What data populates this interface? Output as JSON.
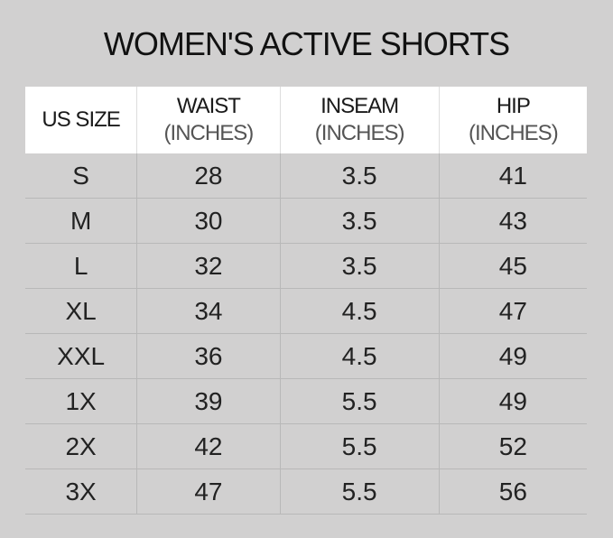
{
  "title": "WOMEN'S ACTIVE SHORTS",
  "headers": [
    {
      "label": "US SIZE",
      "sub": ""
    },
    {
      "label": "WAIST",
      "sub": "(INCHES)"
    },
    {
      "label": "INSEAM",
      "sub": "(INCHES)"
    },
    {
      "label": "HIP",
      "sub": "(INCHES)"
    }
  ],
  "rows": [
    [
      "S",
      "28",
      "3.5",
      "41"
    ],
    [
      "M",
      "30",
      "3.5",
      "43"
    ],
    [
      "L",
      "32",
      "3.5",
      "45"
    ],
    [
      "XL",
      "34",
      "4.5",
      "47"
    ],
    [
      "XXL",
      "36",
      "4.5",
      "49"
    ],
    [
      "1X",
      "39",
      "5.5",
      "49"
    ],
    [
      "2X",
      "42",
      "5.5",
      "52"
    ],
    [
      "3X",
      "47",
      "5.5",
      "56"
    ]
  ]
}
